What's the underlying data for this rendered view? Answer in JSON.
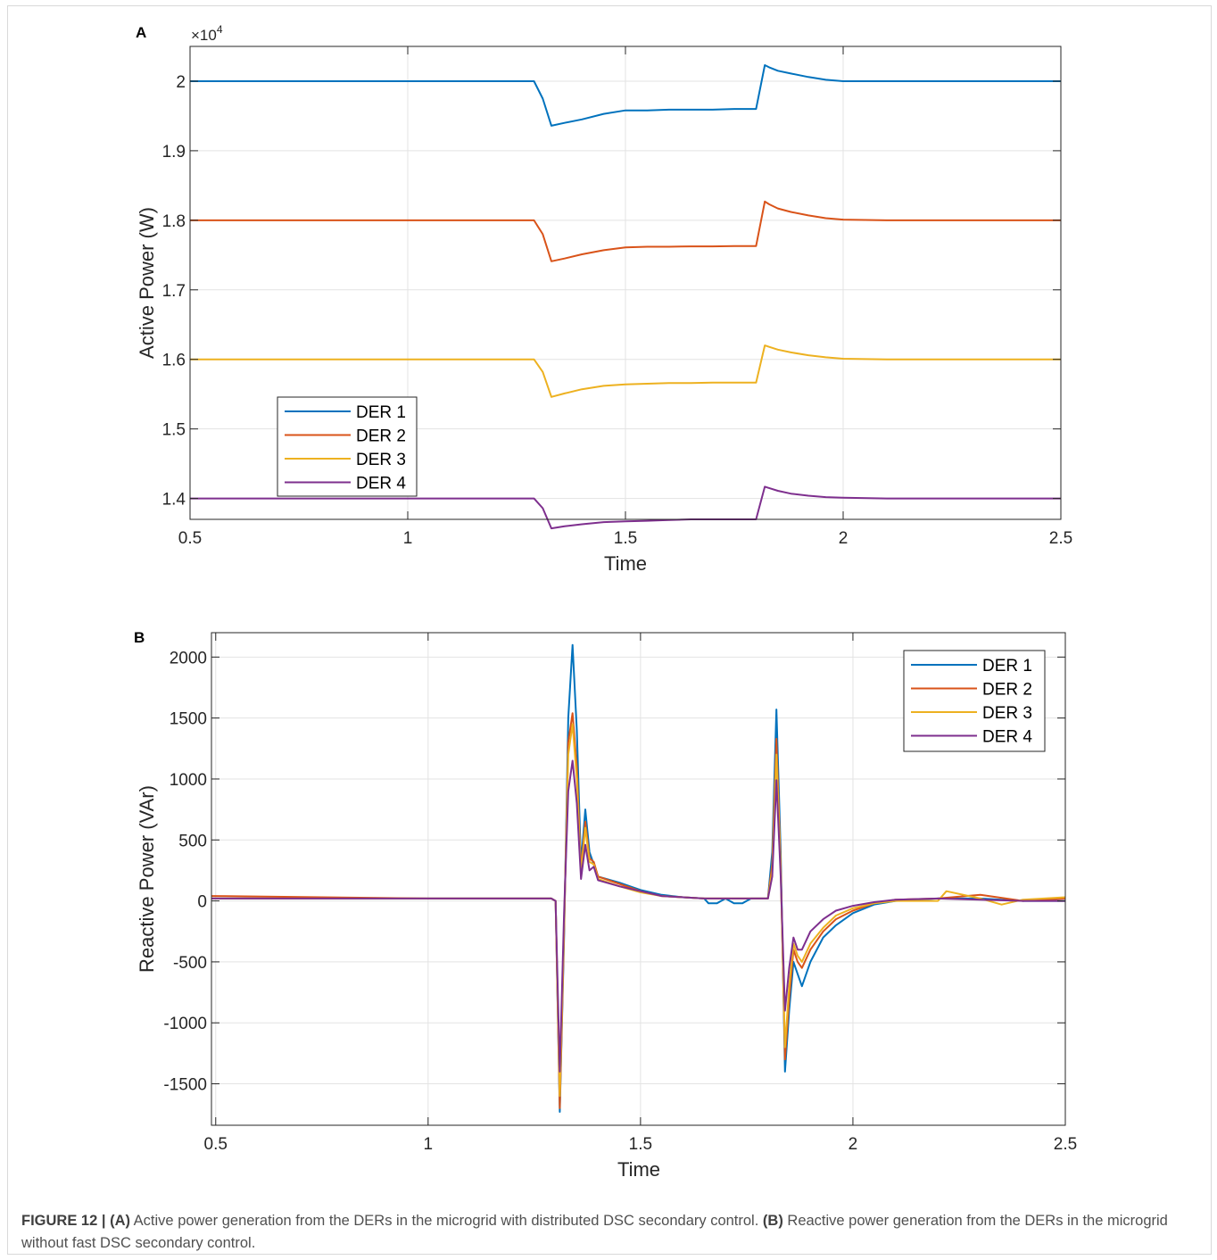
{
  "figure": {
    "caption": {
      "label": "FIGURE 12 |",
      "a_tag": "(A)",
      "a_text": "Active power generation from the DERs in the microgrid with distributed DSC secondary control.",
      "b_tag": "(B)",
      "b_text": "Reactive power generation from the DERs in the microgrid without fast DSC secondary control."
    }
  },
  "series_colors": {
    "DER 1": "#0072BD",
    "DER 2": "#D95319",
    "DER 3": "#EDB120",
    "DER 4": "#7E2F8E"
  },
  "chart_data": [
    {
      "panel": "A",
      "type": "line",
      "xlabel": "Time",
      "ylabel": "Active Power (W)",
      "y_exponent_label": "×10",
      "y_exponent_power": "4",
      "xlim": [
        0.5,
        2.5
      ],
      "ylim": [
        13.7,
        20.5
      ],
      "y_scale": 1000,
      "xticks": [
        0.5,
        1,
        1.5,
        2,
        2.5
      ],
      "xtick_labels": [
        "0.5",
        "1",
        "1.5",
        "2",
        "2.5"
      ],
      "yticks": [
        14,
        15,
        16,
        17,
        18,
        19,
        20
      ],
      "ytick_labels": [
        "1.4",
        "1.5",
        "1.6",
        "1.7",
        "1.8",
        "1.9",
        "2"
      ],
      "grid": true,
      "legend_position": "bottom-left",
      "series": [
        {
          "name": "DER 1",
          "x": [
            0.5,
            1.29,
            1.31,
            1.33,
            1.36,
            1.4,
            1.45,
            1.5,
            1.55,
            1.6,
            1.65,
            1.7,
            1.75,
            1.8,
            1.82,
            1.83,
            1.85,
            1.88,
            1.92,
            1.96,
            2.0,
            2.1,
            2.3,
            2.5
          ],
          "y": [
            20000,
            20000,
            19750,
            19360,
            19400,
            19450,
            19530,
            19580,
            19580,
            19590,
            19590,
            19590,
            19600,
            19600,
            20230,
            20200,
            20150,
            20110,
            20060,
            20020,
            20000,
            20000,
            20000,
            20000
          ]
        },
        {
          "name": "DER 2",
          "x": [
            0.5,
            1.29,
            1.31,
            1.33,
            1.36,
            1.4,
            1.45,
            1.5,
            1.55,
            1.6,
            1.65,
            1.7,
            1.75,
            1.8,
            1.82,
            1.83,
            1.85,
            1.88,
            1.92,
            1.96,
            2.0,
            2.1,
            2.3,
            2.5
          ],
          "y": [
            18000,
            18000,
            17800,
            17410,
            17450,
            17510,
            17570,
            17610,
            17620,
            17620,
            17625,
            17625,
            17630,
            17630,
            18270,
            18230,
            18170,
            18120,
            18070,
            18030,
            18010,
            18000,
            18000,
            18000
          ]
        },
        {
          "name": "DER 3",
          "x": [
            0.5,
            1.29,
            1.31,
            1.33,
            1.36,
            1.4,
            1.45,
            1.5,
            1.55,
            1.6,
            1.65,
            1.7,
            1.75,
            1.8,
            1.82,
            1.83,
            1.85,
            1.88,
            1.92,
            1.96,
            2.0,
            2.1,
            2.3,
            2.5
          ],
          "y": [
            16000,
            16000,
            15820,
            15460,
            15510,
            15570,
            15620,
            15640,
            15650,
            15660,
            15660,
            15665,
            15665,
            15665,
            16200,
            16180,
            16140,
            16100,
            16060,
            16030,
            16010,
            16000,
            16000,
            16000
          ]
        },
        {
          "name": "DER 4",
          "x": [
            0.5,
            1.29,
            1.31,
            1.33,
            1.36,
            1.4,
            1.45,
            1.5,
            1.55,
            1.6,
            1.65,
            1.7,
            1.75,
            1.8,
            1.82,
            1.83,
            1.85,
            1.88,
            1.92,
            1.96,
            2.0,
            2.1,
            2.3,
            2.5
          ],
          "y": [
            14000,
            14000,
            13860,
            13570,
            13600,
            13630,
            13660,
            13670,
            13680,
            13690,
            13700,
            13700,
            13700,
            13700,
            14170,
            14150,
            14110,
            14070,
            14040,
            14020,
            14010,
            14000,
            14000,
            14000
          ]
        }
      ]
    },
    {
      "panel": "B",
      "type": "line",
      "xlabel": "Time",
      "ylabel": "Reactive Power (VAr)",
      "xlim": [
        0.49,
        2.5
      ],
      "ylim": [
        -1840,
        2200
      ],
      "xticks": [
        0.5,
        1,
        1.5,
        2,
        2.5
      ],
      "xtick_labels": [
        "0.5",
        "1",
        "1.5",
        "2",
        "2.5"
      ],
      "yticks": [
        -1500,
        -1000,
        -500,
        0,
        500,
        1000,
        1500,
        2000
      ],
      "ytick_labels": [
        "-1500",
        "-1000",
        "-500",
        "0",
        "500",
        "1000",
        "1500",
        "2000"
      ],
      "grid": true,
      "legend_position": "top-right",
      "series": [
        {
          "name": "DER 1",
          "x": [
            0.49,
            1.0,
            1.29,
            1.3,
            1.31,
            1.32,
            1.33,
            1.34,
            1.35,
            1.36,
            1.37,
            1.38,
            1.39,
            1.4,
            1.45,
            1.5,
            1.55,
            1.6,
            1.65,
            1.66,
            1.68,
            1.7,
            1.72,
            1.74,
            1.76,
            1.8,
            1.81,
            1.82,
            1.83,
            1.84,
            1.85,
            1.86,
            1.87,
            1.88,
            1.9,
            1.93,
            1.96,
            2.0,
            2.05,
            2.1,
            2.2,
            2.3,
            2.4,
            2.5
          ],
          "y": [
            20,
            20,
            20,
            0,
            -1730,
            -300,
            1500,
            2100,
            1400,
            300,
            750,
            400,
            300,
            200,
            150,
            90,
            50,
            30,
            20,
            -20,
            -20,
            20,
            -20,
            -20,
            20,
            20,
            400,
            1570,
            400,
            -1400,
            -900,
            -500,
            -600,
            -700,
            -500,
            -300,
            -200,
            -100,
            -30,
            0,
            20,
            20,
            0,
            0
          ]
        },
        {
          "name": "DER 2",
          "x": [
            0.49,
            1.0,
            1.29,
            1.3,
            1.31,
            1.32,
            1.33,
            1.34,
            1.35,
            1.36,
            1.37,
            1.38,
            1.39,
            1.4,
            1.45,
            1.5,
            1.55,
            1.6,
            1.65,
            1.7,
            1.76,
            1.8,
            1.81,
            1.82,
            1.83,
            1.84,
            1.85,
            1.86,
            1.87,
            1.88,
            1.9,
            1.93,
            1.96,
            2.0,
            2.05,
            2.1,
            2.2,
            2.3,
            2.4,
            2.5
          ],
          "y": [
            40,
            20,
            20,
            0,
            -1700,
            -250,
            1300,
            1540,
            1100,
            250,
            650,
            350,
            320,
            200,
            140,
            80,
            40,
            30,
            20,
            20,
            20,
            20,
            300,
            1330,
            300,
            -1300,
            -800,
            -400,
            -500,
            -550,
            -400,
            -250,
            -150,
            -80,
            -20,
            10,
            20,
            50,
            0,
            20
          ]
        },
        {
          "name": "DER 3",
          "x": [
            0.49,
            1.0,
            1.29,
            1.3,
            1.31,
            1.32,
            1.33,
            1.34,
            1.35,
            1.36,
            1.37,
            1.38,
            1.39,
            1.4,
            1.45,
            1.5,
            1.55,
            1.6,
            1.65,
            1.7,
            1.76,
            1.8,
            1.81,
            1.82,
            1.83,
            1.84,
            1.85,
            1.86,
            1.87,
            1.88,
            1.9,
            1.93,
            1.96,
            2.0,
            2.05,
            2.1,
            2.2,
            2.22,
            2.3,
            2.35,
            2.4,
            2.5
          ],
          "y": [
            20,
            20,
            20,
            0,
            -1600,
            -200,
            1200,
            1450,
            1000,
            220,
            600,
            320,
            300,
            180,
            120,
            70,
            40,
            30,
            20,
            20,
            20,
            20,
            250,
            1200,
            250,
            -1200,
            -700,
            -350,
            -450,
            -500,
            -350,
            -220,
            -120,
            -60,
            -20,
            0,
            0,
            80,
            20,
            -30,
            10,
            30
          ]
        },
        {
          "name": "DER 4",
          "x": [
            0.49,
            1.0,
            1.29,
            1.3,
            1.31,
            1.32,
            1.33,
            1.34,
            1.35,
            1.36,
            1.37,
            1.38,
            1.39,
            1.4,
            1.45,
            1.5,
            1.55,
            1.6,
            1.65,
            1.7,
            1.76,
            1.8,
            1.81,
            1.82,
            1.83,
            1.84,
            1.85,
            1.86,
            1.87,
            1.88,
            1.9,
            1.93,
            1.96,
            2.0,
            2.05,
            2.1,
            2.2,
            2.3,
            2.4,
            2.5
          ],
          "y": [
            20,
            20,
            20,
            0,
            -1400,
            -100,
            900,
            1150,
            800,
            180,
            460,
            250,
            280,
            170,
            120,
            80,
            40,
            30,
            20,
            20,
            20,
            20,
            200,
            990,
            200,
            -900,
            -550,
            -300,
            -400,
            -400,
            -250,
            -150,
            -80,
            -40,
            -10,
            10,
            20,
            10,
            0,
            0
          ]
        }
      ]
    }
  ]
}
